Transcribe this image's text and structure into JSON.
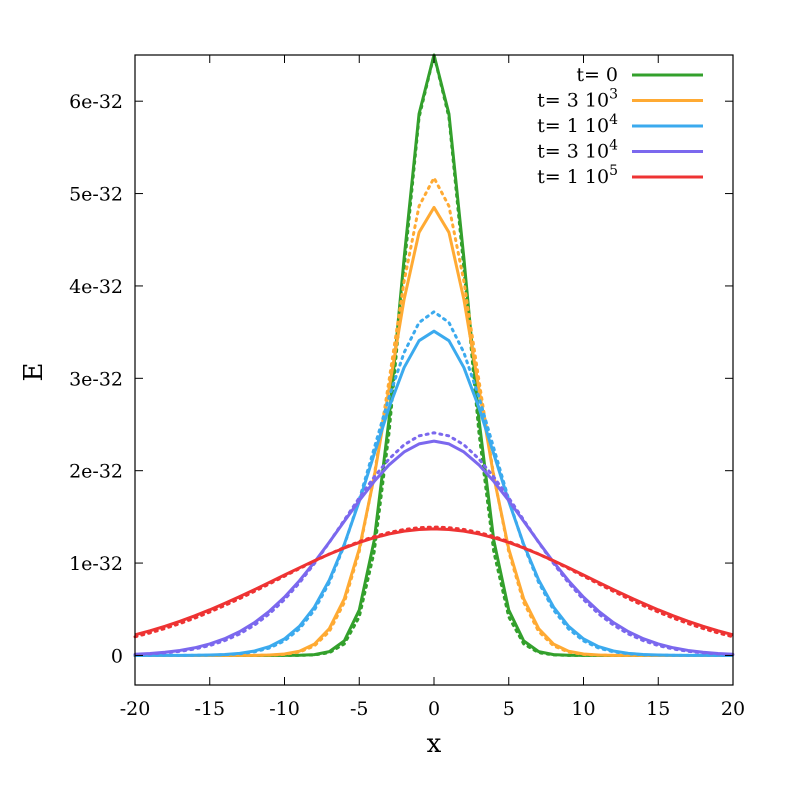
{
  "chart_data": {
    "type": "line",
    "xlabel": "x",
    "ylabel": "E",
    "xlim": [
      -20,
      20
    ],
    "ylim": [
      -3.2e-33,
      6.5e-32
    ],
    "x_ticks": [
      -20,
      -15,
      -10,
      -5,
      0,
      5,
      10,
      15,
      20
    ],
    "x_tick_labels": [
      "-20",
      "-15",
      "-10",
      "-5",
      "0",
      "5",
      "10",
      "15",
      "20"
    ],
    "y_ticks": [
      0,
      1e-32,
      2e-32,
      3e-32,
      4e-32,
      5e-32,
      6e-32
    ],
    "y_tick_labels": [
      "0",
      "1e-32",
      "2e-32",
      "3e-32",
      "4e-32",
      "5e-32",
      "6e-32"
    ],
    "grid": false,
    "legend_position": "top-right",
    "line_styles": [
      "solid",
      "dotted"
    ],
    "series": [
      {
        "name": "t= 0",
        "label_main": "t= 0",
        "label_sup": "",
        "color": "#33a02c",
        "peak": 6.5e-32,
        "peak_dotted": 6.5e-32,
        "sigma": 2.2
      },
      {
        "name": "t= 3 10^3",
        "label_main": "t= 3 10",
        "label_sup": "3",
        "color": "#ffaa33",
        "peak": 4.85e-32,
        "peak_dotted": 5.17e-32,
        "sigma": 2.95
      },
      {
        "name": "t= 1 10^4",
        "label_main": "t= 1 10",
        "label_sup": "4",
        "color": "#3baaee",
        "peak": 3.51e-32,
        "peak_dotted": 3.72e-32,
        "sigma": 4.1
      },
      {
        "name": "t= 3 10^4",
        "label_main": "t= 3 10",
        "label_sup": "4",
        "color": "#7b68ee",
        "peak": 2.32e-32,
        "peak_dotted": 2.41e-32,
        "sigma": 6.2
      },
      {
        "name": "t= 1 10^5",
        "label_main": "t= 1 10",
        "label_sup": "5",
        "color": "#ee3333",
        "peak": 1.37e-32,
        "peak_dotted": 1.39e-32,
        "sigma": 10.5
      }
    ]
  }
}
